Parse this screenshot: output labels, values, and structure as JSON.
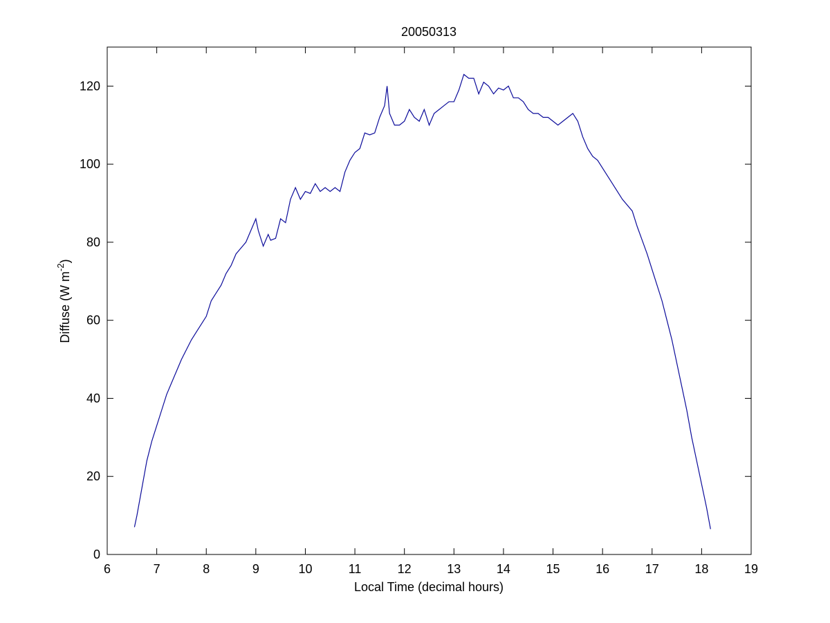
{
  "chart_data": {
    "type": "line",
    "title": "20050313",
    "xlabel": "Local Time (decimal hours)",
    "ylabel": [
      "Diffuse (W m",
      "-2",
      ")"
    ],
    "xlim": [
      6,
      19
    ],
    "ylim": [
      0,
      130
    ],
    "xticks": [
      6,
      7,
      8,
      9,
      10,
      11,
      12,
      13,
      14,
      15,
      16,
      17,
      18,
      19
    ],
    "yticks": [
      0,
      20,
      40,
      60,
      80,
      100,
      120
    ],
    "grid": false,
    "series": [
      {
        "color": "#0b0b9a",
        "x": [
          6.55,
          6.6,
          6.7,
          6.8,
          6.9,
          7.0,
          7.1,
          7.2,
          7.3,
          7.4,
          7.5,
          7.6,
          7.7,
          7.8,
          7.9,
          8.0,
          8.1,
          8.2,
          8.3,
          8.4,
          8.5,
          8.6,
          8.7,
          8.8,
          8.9,
          9.0,
          9.05,
          9.15,
          9.25,
          9.3,
          9.4,
          9.5,
          9.6,
          9.7,
          9.8,
          9.9,
          10.0,
          10.1,
          10.2,
          10.3,
          10.4,
          10.5,
          10.6,
          10.7,
          10.8,
          10.9,
          11.0,
          11.1,
          11.2,
          11.3,
          11.4,
          11.5,
          11.6,
          11.65,
          11.7,
          11.8,
          11.9,
          12.0,
          12.1,
          12.2,
          12.3,
          12.4,
          12.5,
          12.6,
          12.7,
          12.8,
          12.9,
          13.0,
          13.1,
          13.2,
          13.3,
          13.4,
          13.5,
          13.6,
          13.7,
          13.8,
          13.9,
          14.0,
          14.1,
          14.2,
          14.3,
          14.4,
          14.5,
          14.6,
          14.7,
          14.8,
          14.9,
          15.0,
          15.1,
          15.2,
          15.3,
          15.4,
          15.5,
          15.6,
          15.7,
          15.8,
          15.9,
          16.0,
          16.2,
          16.4,
          16.6,
          16.7,
          16.8,
          16.9,
          17.0,
          17.1,
          17.2,
          17.3,
          17.4,
          17.5,
          17.6,
          17.7,
          17.8,
          17.9,
          18.0,
          18.1,
          18.18
        ],
        "values": [
          7,
          10,
          17,
          24,
          29,
          33,
          37,
          41,
          44,
          47,
          50,
          52.5,
          55,
          57,
          59,
          61,
          65,
          67,
          69,
          72,
          74,
          77,
          78.5,
          80,
          83,
          86,
          83,
          79,
          82,
          80.5,
          81,
          86,
          85,
          91,
          94,
          91,
          93,
          92.5,
          95,
          93,
          94,
          93,
          94,
          93,
          98,
          101,
          103,
          104,
          108,
          107.5,
          108,
          112,
          115,
          120,
          113,
          110,
          110,
          111,
          114,
          112,
          111,
          114,
          110,
          113,
          114,
          115,
          116,
          116,
          119,
          123,
          122,
          122,
          118,
          121,
          120,
          118,
          119.5,
          119,
          120,
          117,
          117,
          116,
          114,
          113,
          113,
          112,
          112,
          111,
          110,
          111,
          112,
          113,
          111,
          107,
          104,
          102,
          101,
          99,
          95,
          91,
          88,
          84,
          80.5,
          77,
          73,
          69,
          65,
          60,
          55,
          49,
          43,
          37,
          30,
          24,
          18,
          12,
          6.5
        ]
      }
    ]
  }
}
